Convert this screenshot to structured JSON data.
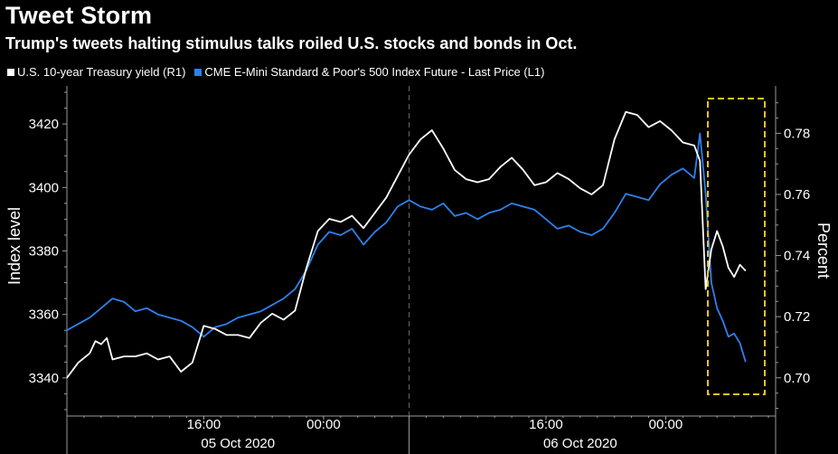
{
  "title": "Tweet Storm",
  "subtitle": "Trump's tweets halting stimulus talks roiled U.S. stocks and bonds in Oct.",
  "legend": [
    {
      "label": "U.S. 10-year Treasury yield (R1)",
      "color": "#ffffff"
    },
    {
      "label": "CME E-Mini Standard & Poor's 500 Index Future - Last Price (L1)",
      "color": "#2f80ed"
    }
  ],
  "colors": {
    "yield": "#ffffff",
    "index": "#2f80ed",
    "highlight": "#e8c31d",
    "axis": "#9a9a9a"
  },
  "chart_data": {
    "type": "line",
    "ylabel": "Index level",
    "y2label": "Percent",
    "ylim": [
      3328,
      3432
    ],
    "y2lim": [
      0.6875,
      0.7955
    ],
    "yticks": [
      3340,
      3360,
      3380,
      3400,
      3420
    ],
    "y2ticks": [
      0.7,
      0.72,
      0.74,
      0.76,
      0.78
    ],
    "x_tick_labels": [
      "16:00",
      "00:00",
      "16:00",
      "00:00"
    ],
    "x_date_labels": [
      "05 Oct 2020",
      "06 Oct 2020"
    ],
    "series": [
      {
        "name": "CME E-Mini Standard & Poor's 500 Index Future - Last Price (L1)",
        "axis": "left",
        "points": [
          [
            0,
            3355
          ],
          [
            2,
            3357
          ],
          [
            4,
            3359
          ],
          [
            6,
            3362
          ],
          [
            8,
            3365
          ],
          [
            10,
            3364
          ],
          [
            12,
            3361
          ],
          [
            14,
            3362
          ],
          [
            16,
            3360
          ],
          [
            18,
            3359
          ],
          [
            20,
            3358
          ],
          [
            22,
            3356
          ],
          [
            24,
            3353
          ],
          [
            26,
            3356
          ],
          [
            28,
            3357
          ],
          [
            30,
            3359
          ],
          [
            32,
            3360
          ],
          [
            34,
            3361
          ],
          [
            36,
            3363
          ],
          [
            38,
            3365
          ],
          [
            40,
            3368
          ],
          [
            42,
            3374
          ],
          [
            44,
            3382
          ],
          [
            46,
            3386
          ],
          [
            48,
            3385
          ],
          [
            50,
            3387
          ],
          [
            52,
            3382
          ],
          [
            54,
            3386
          ],
          [
            56,
            3389
          ],
          [
            58,
            3394
          ],
          [
            60,
            3396
          ],
          [
            62,
            3394
          ],
          [
            64,
            3393
          ],
          [
            66,
            3395
          ],
          [
            68,
            3391
          ],
          [
            70,
            3392
          ],
          [
            72,
            3390
          ],
          [
            74,
            3392
          ],
          [
            76,
            3393
          ],
          [
            78,
            3395
          ],
          [
            80,
            3394
          ],
          [
            82,
            3393
          ],
          [
            84,
            3390
          ],
          [
            86,
            3387
          ],
          [
            88,
            3388
          ],
          [
            90,
            3386
          ],
          [
            92,
            3385
          ],
          [
            94,
            3387
          ],
          [
            96,
            3392
          ],
          [
            98,
            3398
          ],
          [
            100,
            3397
          ],
          [
            102,
            3396
          ],
          [
            104,
            3401
          ],
          [
            106,
            3404
          ],
          [
            108,
            3406
          ],
          [
            110,
            3403
          ],
          [
            111,
            3417
          ],
          [
            112,
            3398
          ],
          [
            113,
            3370
          ],
          [
            114,
            3362
          ],
          [
            115,
            3358
          ],
          [
            116,
            3353
          ],
          [
            117,
            3354
          ],
          [
            118,
            3351
          ],
          [
            119,
            3345
          ]
        ]
      },
      {
        "name": "U.S. 10-year Treasury yield (R1)",
        "axis": "right",
        "points": [
          [
            0,
            0.7
          ],
          [
            2,
            0.705
          ],
          [
            4,
            0.708
          ],
          [
            5,
            0.712
          ],
          [
            6,
            0.711
          ],
          [
            7,
            0.713
          ],
          [
            8,
            0.706
          ],
          [
            10,
            0.707
          ],
          [
            12,
            0.707
          ],
          [
            14,
            0.708
          ],
          [
            16,
            0.706
          ],
          [
            18,
            0.707
          ],
          [
            20,
            0.702
          ],
          [
            22,
            0.705
          ],
          [
            24,
            0.717
          ],
          [
            26,
            0.716
          ],
          [
            28,
            0.714
          ],
          [
            30,
            0.714
          ],
          [
            32,
            0.713
          ],
          [
            34,
            0.718
          ],
          [
            36,
            0.721
          ],
          [
            38,
            0.719
          ],
          [
            40,
            0.722
          ],
          [
            42,
            0.736
          ],
          [
            44,
            0.748
          ],
          [
            46,
            0.752
          ],
          [
            48,
            0.751
          ],
          [
            50,
            0.753
          ],
          [
            52,
            0.749
          ],
          [
            54,
            0.754
          ],
          [
            56,
            0.759
          ],
          [
            58,
            0.766
          ],
          [
            60,
            0.773
          ],
          [
            62,
            0.778
          ],
          [
            64,
            0.781
          ],
          [
            66,
            0.775
          ],
          [
            68,
            0.768
          ],
          [
            70,
            0.765
          ],
          [
            72,
            0.764
          ],
          [
            74,
            0.765
          ],
          [
            76,
            0.769
          ],
          [
            78,
            0.772
          ],
          [
            80,
            0.768
          ],
          [
            82,
            0.763
          ],
          [
            84,
            0.764
          ],
          [
            86,
            0.767
          ],
          [
            88,
            0.765
          ],
          [
            90,
            0.762
          ],
          [
            92,
            0.76
          ],
          [
            94,
            0.763
          ],
          [
            96,
            0.778
          ],
          [
            98,
            0.787
          ],
          [
            100,
            0.786
          ],
          [
            102,
            0.782
          ],
          [
            104,
            0.784
          ],
          [
            106,
            0.781
          ],
          [
            108,
            0.777
          ],
          [
            110,
            0.776
          ],
          [
            111,
            0.771
          ],
          [
            112,
            0.729
          ],
          [
            113,
            0.742
          ],
          [
            114,
            0.748
          ],
          [
            115,
            0.743
          ],
          [
            116,
            0.736
          ],
          [
            117,
            0.733
          ],
          [
            118,
            0.737
          ],
          [
            119,
            0.735
          ]
        ]
      }
    ]
  }
}
